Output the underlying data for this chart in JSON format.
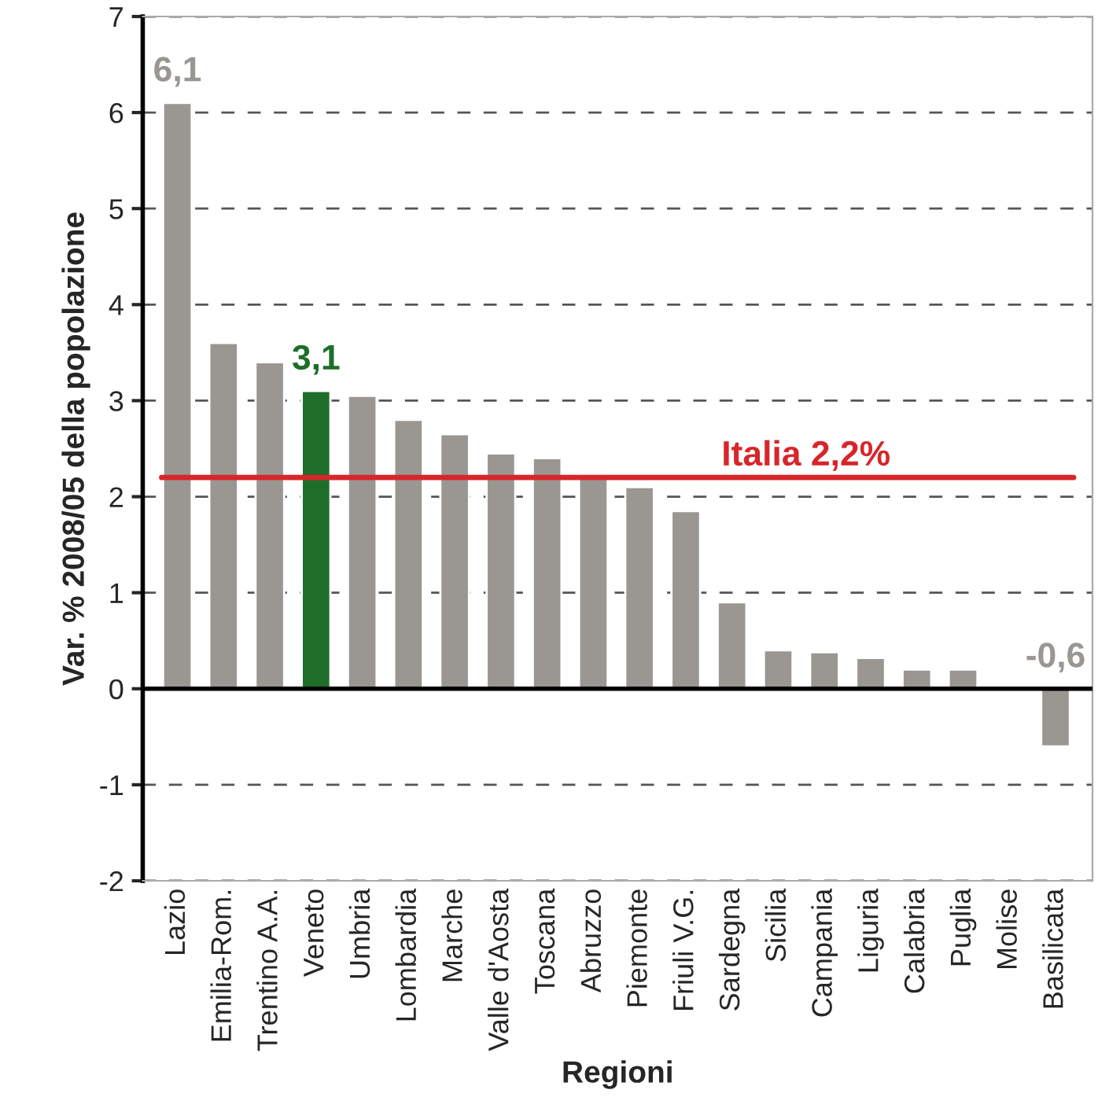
{
  "chart_data": {
    "type": "bar",
    "xlabel": "Regioni",
    "ylabel": "Var. % 2008/05 della popolazione",
    "categories": [
      "Lazio",
      "Emilia-Rom.",
      "Trentino A.A.",
      "Veneto",
      "Umbria",
      "Lombardia",
      "Marche",
      "Valle d'Aosta",
      "Toscana",
      "Abruzzo",
      "Piemonte",
      "Friuli V.G.",
      "Sardegna",
      "Sicilia",
      "Campania",
      "Liguria",
      "Calabria",
      "Puglia",
      "Molise",
      "Basilicata"
    ],
    "values": [
      6.1,
      3.6,
      3.4,
      3.1,
      3.05,
      2.8,
      2.65,
      2.45,
      2.4,
      2.2,
      2.1,
      1.85,
      0.9,
      0.4,
      0.38,
      0.32,
      0.2,
      0.2,
      null,
      -0.6
    ],
    "colors": [
      "#9a9793",
      "#9a9793",
      "#9a9793",
      "#1e6e2a",
      "#9a9793",
      "#9a9793",
      "#9a9793",
      "#9a9793",
      "#9a9793",
      "#9a9793",
      "#9a9793",
      "#9a9793",
      "#9a9793",
      "#9a9793",
      "#9a9793",
      "#9a9793",
      "#9a9793",
      "#9a9793",
      "#9a9793",
      "#9a9793"
    ],
    "value_labels": [
      "6,1",
      null,
      null,
      "3,1",
      null,
      null,
      null,
      null,
      null,
      null,
      null,
      null,
      null,
      null,
      null,
      null,
      null,
      null,
      null,
      "-0,6"
    ],
    "ylim": [
      -2,
      7
    ],
    "yticks": [
      -2,
      -1,
      0,
      1,
      2,
      3,
      4,
      5,
      6,
      7
    ],
    "grid": "y",
    "ref_lines": [
      {
        "axis": "y",
        "value": 2.2,
        "label": "Italia 2,2%",
        "color": "#d7262b"
      }
    ]
  }
}
